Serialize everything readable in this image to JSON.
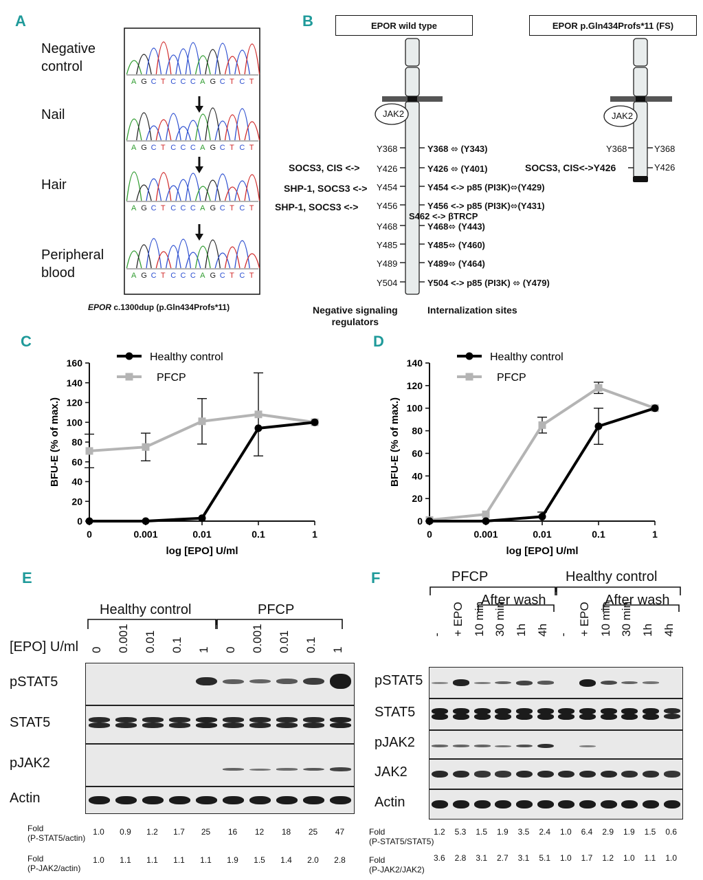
{
  "panel_labels": {
    "a": "A",
    "b": "B",
    "c": "C",
    "d": "D",
    "e": "E",
    "f": "F"
  },
  "panelA": {
    "samples": [
      "Negative control",
      "Nail",
      "Hair",
      "Peripheral blood"
    ],
    "sample_lines": [
      [
        "Negative",
        "control"
      ],
      [
        "Nail"
      ],
      [
        "Hair"
      ],
      [
        "Peripheral",
        "blood"
      ]
    ],
    "sequence": "AGCTCCCAGCTCT",
    "caption_gene": "EPOR",
    "caption_rest": "c.1300dup (p.Gln434Profs*11)"
  },
  "panelB": {
    "wt_title": "EPOR wild type",
    "fs_title": "EPOR p.Gln434Profs*11 (FS)",
    "jak2": "JAK2",
    "left_labels": [
      "SOCS3, CIS <->",
      "SHP-1, SOCS3 <->",
      "SHP-1, SOCS3 <->"
    ],
    "wt_tyr_left": [
      "368",
      "426",
      "454",
      "456",
      "468",
      "485",
      "489",
      "504"
    ],
    "wt_right": [
      "Y368 ⬄ (Y343)",
      "Y426 ⬄ (Y401)",
      "Y454 <-> p85 (PI3K)⬄(Y429)",
      "Y456 <-> p85 (PI3K)⬄(Y431)",
      "Y468⬄ (Y443)",
      "Y485⬄ (Y460)",
      "Y489⬄ (Y464)",
      "Y504 <-> p85 (PI3K) ⬄ (Y479)"
    ],
    "s462": "S462 <-> βTRCP",
    "fs_left": [
      "Y368",
      "SOCS3, CIS<->Y426"
    ],
    "fs_right": [
      "Y368",
      "Y426"
    ],
    "footer_left": [
      "Negative signaling",
      "regulators"
    ],
    "footer_right": "Internalization sites"
  },
  "colors": {
    "accent": "#1f9a9a",
    "healthy": "#000000",
    "pfcp": "#b4b4b4"
  },
  "chart_data": [
    {
      "type": "line",
      "panel": "C",
      "ylabel": "BFU-E (% of max.)",
      "xlabel": "log [EPO] U/ml",
      "categories": [
        "0",
        "0.001",
        "0.01",
        "0.1",
        "1"
      ],
      "yticks": [
        0,
        20,
        40,
        60,
        80,
        100,
        120,
        140,
        160
      ],
      "ylim": [
        0,
        160
      ],
      "legend": "top-left",
      "series": [
        {
          "name": "Healthy control",
          "values": [
            0,
            0,
            3,
            94,
            100
          ],
          "err": [
            0,
            0,
            0,
            0,
            0
          ]
        },
        {
          "name": "PFCP",
          "values": [
            71,
            75,
            101,
            108,
            100
          ],
          "err": [
            17,
            14,
            23,
            42,
            0
          ]
        }
      ]
    },
    {
      "type": "line",
      "panel": "D",
      "ylabel": "BFU-E (% of max.)",
      "xlabel": "log [EPO] U/ml",
      "categories": [
        "0",
        "0.001",
        "0.01",
        "0.1",
        "1"
      ],
      "yticks": [
        0,
        20,
        40,
        60,
        80,
        100,
        120,
        140
      ],
      "ylim": [
        0,
        140
      ],
      "legend": "top-left",
      "series": [
        {
          "name": "Healthy control",
          "values": [
            0,
            0,
            4,
            84,
            100
          ],
          "err": [
            0,
            0,
            4,
            16,
            0
          ]
        },
        {
          "name": "PFCP",
          "values": [
            1,
            6,
            85,
            118,
            100
          ],
          "err": [
            0,
            0,
            7,
            5,
            0
          ]
        }
      ]
    }
  ],
  "panelE": {
    "groups": [
      "Healthy control",
      "PFCP"
    ],
    "epo_label": "[EPO] U/ml",
    "lanes": [
      "0",
      "0.001",
      "0.01",
      "0.1",
      "1",
      "0",
      "0.001",
      "0.01",
      "0.1",
      "1"
    ],
    "rows": [
      "pSTAT5",
      "STAT5",
      "pJAK2",
      "Actin"
    ],
    "fold1_label": [
      "Fold",
      "(P-STAT5/actin)"
    ],
    "fold1": [
      "1.0",
      "0.9",
      "1.2",
      "1.7",
      "25",
      "16",
      "12",
      "18",
      "25",
      "47"
    ],
    "fold2_label": [
      "Fold",
      "(P-JAK2/actin)"
    ],
    "fold2": [
      "1.0",
      "1.1",
      "1.1",
      "1.1",
      "1.1",
      "1.9",
      "1.5",
      "1.4",
      "2.0",
      "2.8"
    ]
  },
  "panelF": {
    "groups": [
      "PFCP",
      "Healthy control"
    ],
    "after_wash": "After wash",
    "lanes": [
      "-",
      "+ EPO",
      "10 min",
      "30 min",
      "1h",
      "4h",
      "-",
      "+ EPO",
      "10 min",
      "30 min",
      "1h",
      "4h"
    ],
    "rows": [
      "pSTAT5",
      "STAT5",
      "pJAK2",
      "JAK2",
      "Actin"
    ],
    "fold1_label": [
      "Fold",
      "(P-STAT5/STAT5)"
    ],
    "fold1": [
      "1.2",
      "5.3",
      "1.5",
      "1.9",
      "3.5",
      "2.4",
      "1.0",
      "6.4",
      "2.9",
      "1.9",
      "1.5",
      "0.6"
    ],
    "fold2_label": [
      "Fold",
      "(P-JAK2/JAK2)"
    ],
    "fold2": [
      "3.6",
      "2.8",
      "3.1",
      "2.7",
      "3.1",
      "5.1",
      "1.0",
      "1.7",
      "1.2",
      "1.0",
      "1.1",
      "1.0"
    ]
  }
}
